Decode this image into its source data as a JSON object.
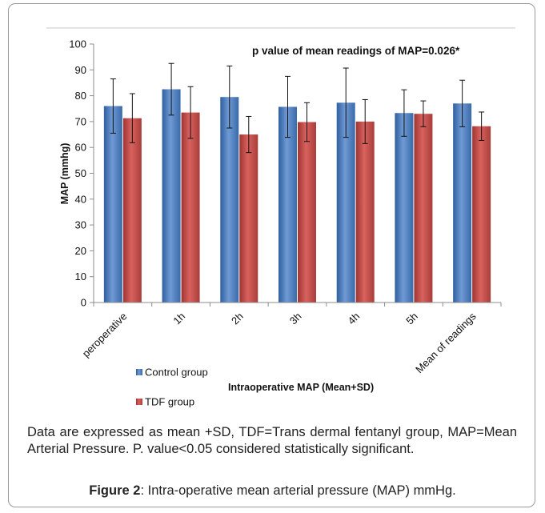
{
  "chart_data": {
    "type": "bar",
    "title": "",
    "annotation": "p value of mean readings of MAP=0.026*",
    "xlabel": "Intraoperative MAP (Mean+SD)",
    "ylabel": "MAP (mmhg)",
    "ylim": [
      0,
      100
    ],
    "yticks": [
      0,
      10,
      20,
      30,
      40,
      50,
      60,
      70,
      80,
      90,
      100
    ],
    "grid": false,
    "legend_position": "bottom-left",
    "categories": [
      "peroperative",
      "1h",
      "2h",
      "3h",
      "4h",
      "5h",
      "Mean of readings"
    ],
    "series": [
      {
        "name": "Control group",
        "color": "#4a7ebb",
        "values": [
          76,
          82.5,
          79.5,
          75.7,
          77.3,
          73.3,
          77
        ],
        "sd": [
          10.5,
          10,
          12,
          11.8,
          13.4,
          9,
          9
        ]
      },
      {
        "name": "TDF group",
        "color": "#c0504d",
        "values": [
          71.3,
          73.5,
          65,
          69.8,
          70,
          73,
          68.2
        ],
        "sd": [
          9.5,
          10,
          7,
          7.5,
          8.5,
          5,
          5.5
        ]
      }
    ]
  },
  "caption": "Data are expressed as mean +SD, TDF=Trans dermal fentanyl group, MAP=Mean Arterial Pressure. P. value<0.05 considered statistically significant.",
  "figure": {
    "label": "Figure 2",
    "text": ": Intra-operative mean arterial pressure (MAP) mmHg."
  }
}
